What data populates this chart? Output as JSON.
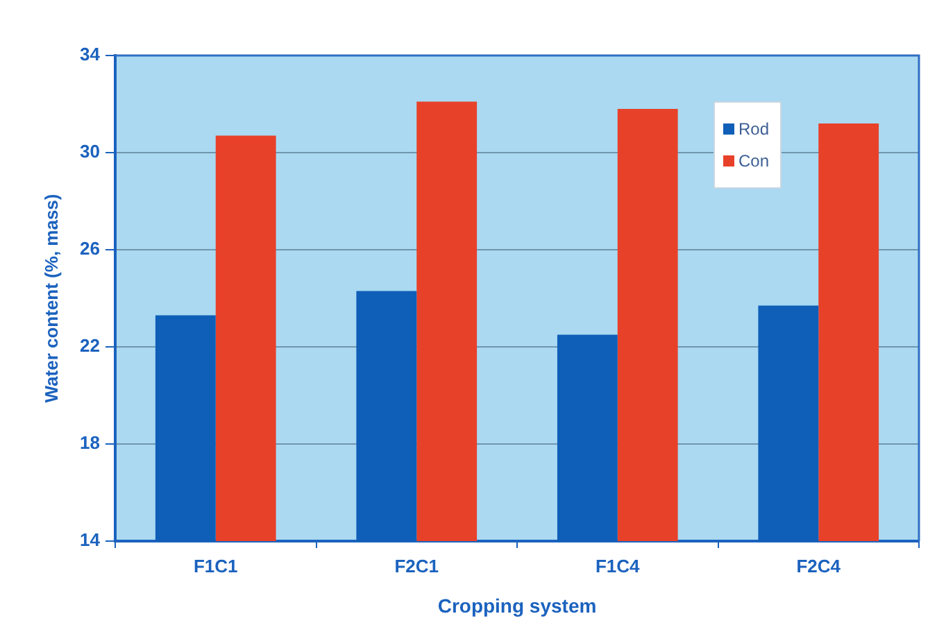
{
  "chart_data": {
    "type": "bar",
    "xlabel": "Cropping system",
    "ylabel": "Water content (%, mass)",
    "categories": [
      "F1C1",
      "F2C1",
      "F1C4",
      "F2C4"
    ],
    "series": [
      {
        "name": "Rod",
        "color": "#0f5fb8",
        "values": [
          23.3,
          24.3,
          22.5,
          23.7
        ]
      },
      {
        "name": "Con",
        "color": "#e8412a",
        "values": [
          30.7,
          32.1,
          31.8,
          31.2
        ]
      }
    ],
    "ylim": [
      14,
      34
    ],
    "yticks": [
      14,
      18,
      22,
      26,
      30,
      34
    ],
    "grid": "y",
    "legend": "top right"
  }
}
